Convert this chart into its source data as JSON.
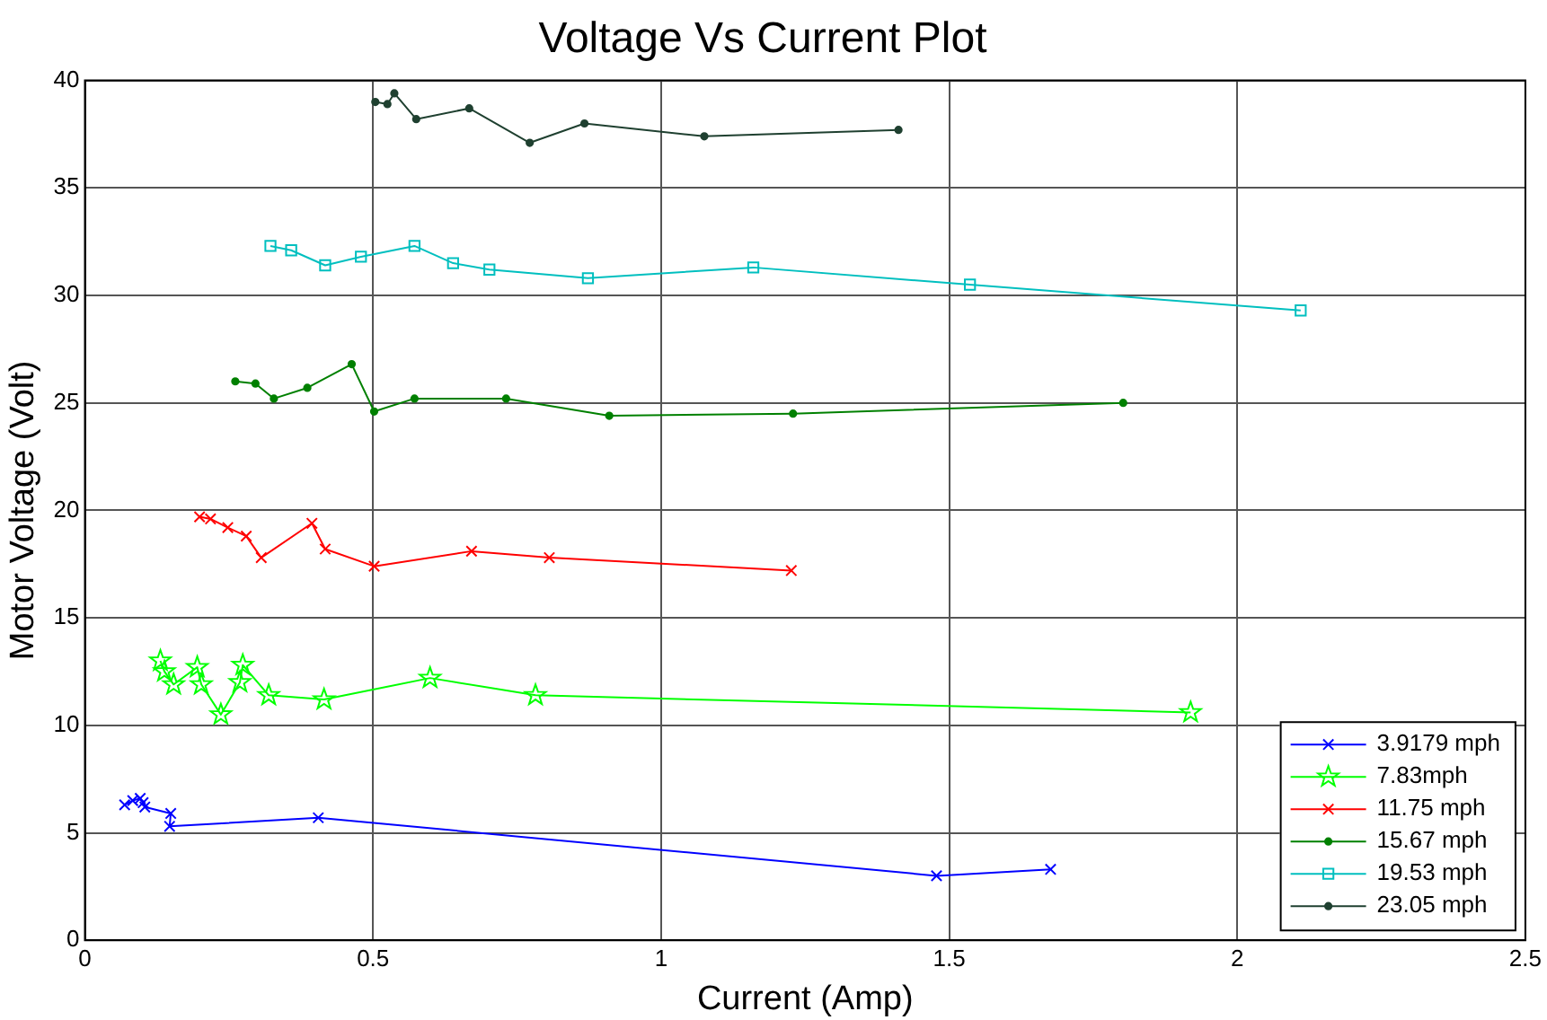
{
  "chart_data": {
    "type": "line",
    "title": "Voltage Vs Current Plot",
    "xlabel": "Current (Amp)",
    "ylabel": "Motor Voltage (Volt)",
    "xlim": [
      0,
      2.5
    ],
    "xticks": [
      0,
      0.5,
      1,
      1.5,
      2,
      2.5
    ],
    "ylim": [
      0,
      40
    ],
    "yticks": [
      0,
      5,
      10,
      15,
      20,
      25,
      30,
      35,
      40
    ],
    "grid": true,
    "legend": "bottom right",
    "series": [
      {
        "name": "3.9179 mph",
        "color": "#0000ff",
        "marker": "cross",
        "x": [
          0.069,
          0.083,
          0.096,
          0.101,
          0.104,
          0.149,
          0.147,
          0.405,
          1.478,
          1.676
        ],
        "values": [
          6.3,
          6.5,
          6.6,
          6.4,
          6.2,
          5.9,
          5.3,
          5.7,
          3.0,
          3.3
        ]
      },
      {
        "name": "7.83mph",
        "color": "#00ff00",
        "marker": "star",
        "x": [
          0.131,
          0.138,
          0.154,
          0.195,
          0.202,
          0.236,
          0.269,
          0.274,
          0.319,
          0.415,
          0.599,
          0.782,
          1.919
        ],
        "values": [
          13.0,
          12.5,
          11.9,
          12.7,
          11.9,
          10.5,
          12.0,
          12.8,
          11.4,
          11.2,
          12.2,
          11.4,
          10.6
        ]
      },
      {
        "name": "11.75 mph",
        "color": "#ff0000",
        "marker": "cross",
        "x": [
          0.199,
          0.218,
          0.248,
          0.28,
          0.306,
          0.394,
          0.417,
          0.502,
          0.671,
          0.806,
          1.226
        ],
        "values": [
          19.7,
          19.6,
          19.2,
          18.8,
          17.8,
          19.4,
          18.2,
          17.4,
          18.1,
          17.8,
          17.2
        ]
      },
      {
        "name": "15.67 mph",
        "color": "#008000",
        "marker": "circle",
        "x": [
          0.261,
          0.296,
          0.328,
          0.386,
          0.463,
          0.502,
          0.572,
          0.731,
          0.91,
          1.229,
          1.802
        ],
        "values": [
          26.0,
          25.9,
          25.2,
          25.7,
          26.8,
          24.6,
          25.2,
          25.2,
          24.4,
          24.5,
          25.0
        ]
      },
      {
        "name": "19.53 mph",
        "color": "#00bfbf",
        "marker": "square",
        "x": [
          0.322,
          0.358,
          0.417,
          0.479,
          0.572,
          0.639,
          0.702,
          0.873,
          1.16,
          1.536,
          2.11
        ],
        "values": [
          32.3,
          32.1,
          31.4,
          31.8,
          32.3,
          31.5,
          31.2,
          30.8,
          31.3,
          30.5,
          29.3
        ]
      },
      {
        "name": "23.05 mph",
        "color": "#1f4030",
        "marker": "circle",
        "x": [
          0.504,
          0.525,
          0.537,
          0.575,
          0.667,
          0.772,
          0.867,
          1.075,
          1.412
        ],
        "values": [
          39.0,
          38.9,
          39.4,
          38.2,
          38.7,
          37.1,
          38.0,
          37.4,
          37.7
        ]
      }
    ]
  }
}
